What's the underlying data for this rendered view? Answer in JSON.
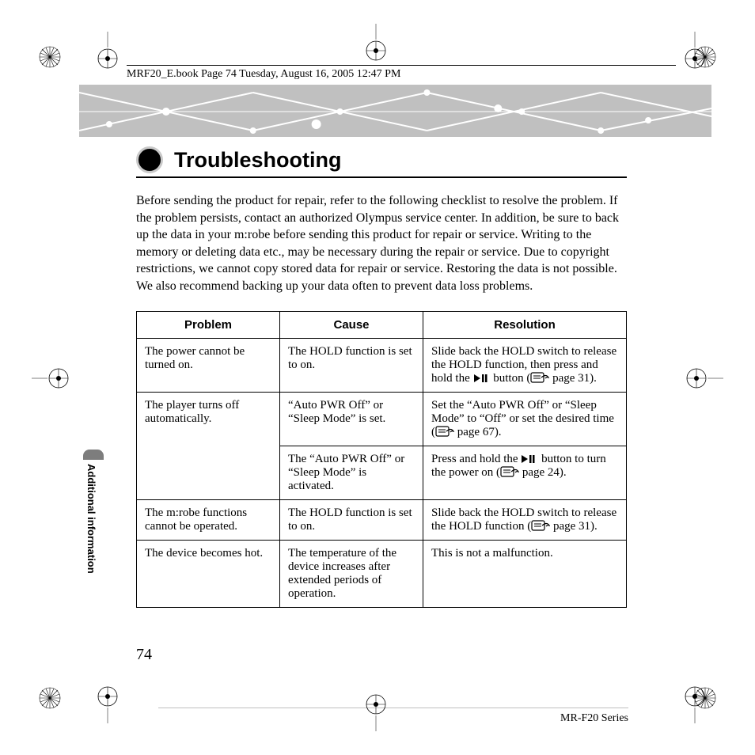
{
  "header_meta": "MRF20_E.book  Page 74  Tuesday, August 16, 2005  12:47 PM",
  "title": "Troubleshooting",
  "intro": "Before sending the product for repair, refer to the following checklist to resolve the problem. If the problem persists, contact an authorized Olympus service center. In addition, be sure to back up the data in your m:robe before sending this product for repair or service. Writing to the memory or deleting data etc., may be necessary during the repair or service. Due to copyright restrictions, we cannot copy stored data for repair or service. Restoring the data is not possible. We also recommend backing up your data often to prevent data loss problems.",
  "sidebar_label": "Additional information",
  "page_number": "74",
  "footer_series": "MR-F20 Series",
  "table": {
    "columns": [
      "Problem",
      "Cause",
      "Resolution"
    ],
    "rows": [
      {
        "problem": "The power cannot be turned on.",
        "cause": "The HOLD function is set to on.",
        "resolution_pre": "Slide back the HOLD switch to release the HOLD function, then press and hold the ",
        "resolution_mid": " button (",
        "resolution_post": " page 31).",
        "has_play_icon": true,
        "has_ref_icon": true
      },
      {
        "problem": "The player turns off automatically.",
        "problem_rowspan": 2,
        "cause": "“Auto PWR Off” or “Sleep Mode” is set.",
        "resolution_pre": "Set the “Auto PWR Off” or “Sleep Mode” to “Off” or set the desired time (",
        "resolution_mid": "",
        "resolution_post": " page 67).",
        "has_play_icon": false,
        "has_ref_icon": true
      },
      {
        "problem": "",
        "cause": "The “Auto PWR Off” or “Sleep Mode” is activated.",
        "resolution_pre": "Press and hold the ",
        "resolution_mid": " button to turn the power on (",
        "resolution_post": " page 24).",
        "has_play_icon": true,
        "has_ref_icon": true
      },
      {
        "problem": "The m:robe functions cannot be operated.",
        "cause": "The HOLD function is set to on.",
        "resolution_pre": "Slide back the HOLD switch to release the HOLD function (",
        "resolution_mid": "",
        "resolution_post": " page 31).",
        "has_play_icon": false,
        "has_ref_icon": true
      },
      {
        "problem": "The device becomes hot.",
        "cause": "The temperature of the device increases after extended periods of operation.",
        "resolution_pre": "This is not a malfunction.",
        "resolution_mid": "",
        "resolution_post": "",
        "has_play_icon": false,
        "has_ref_icon": false
      }
    ]
  },
  "colors": {
    "banner_bg": "#c0c0c0",
    "banner_line": "#ffffff",
    "banner_node": "#ffffff",
    "text": "#000000",
    "sidebar_tab": "#7d7d7d"
  }
}
